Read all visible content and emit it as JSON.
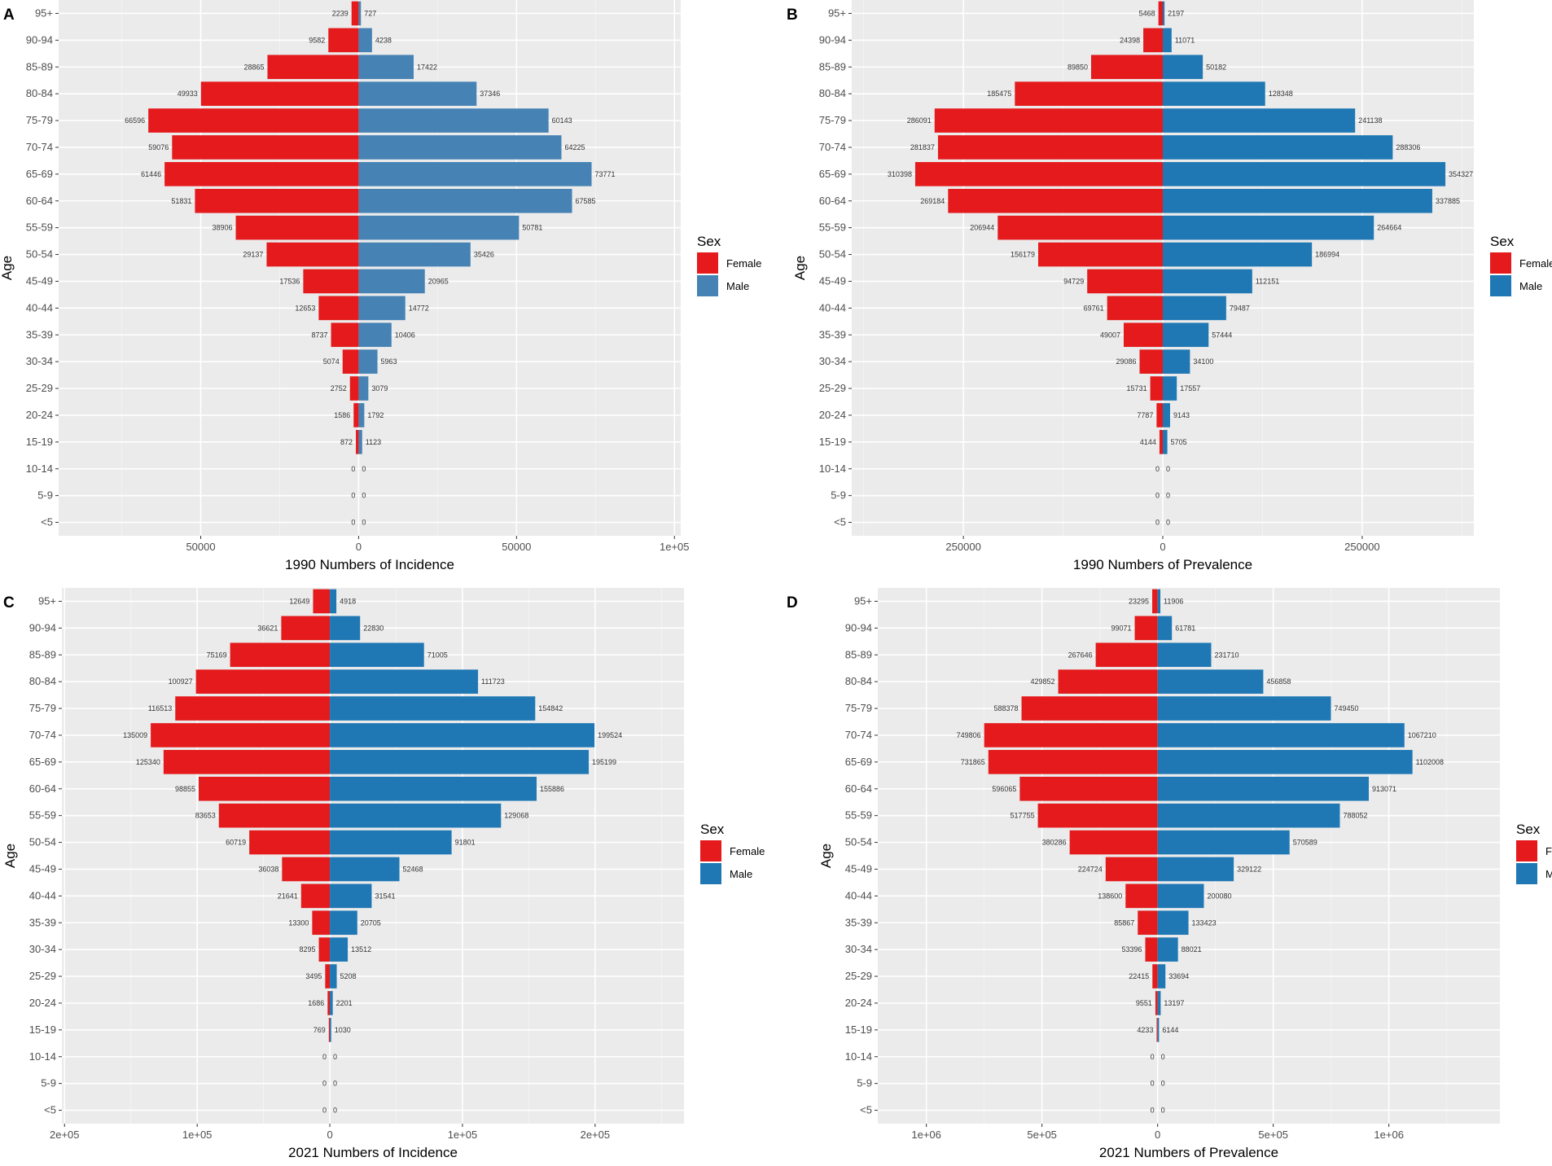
{
  "chart_data": [
    {
      "type": "bar",
      "panel_label": "A",
      "xlabel": "1990 Numbers of Incidence",
      "ylabel": "Age",
      "xlim": [
        -95000,
        102000
      ],
      "xticks": [
        {
          "value": -50000,
          "label": "50000"
        },
        {
          "value": 0,
          "label": "0"
        },
        {
          "value": 50000,
          "label": "50000"
        },
        {
          "value": 100000,
          "label": "1e+05"
        }
      ],
      "categories": [
        "<5",
        "5-9",
        "10-14",
        "15-19",
        "20-24",
        "25-29",
        "30-34",
        "35-39",
        "40-44",
        "45-49",
        "50-54",
        "55-59",
        "60-64",
        "65-69",
        "70-74",
        "75-79",
        "80-84",
        "85-89",
        "90-94",
        "95+"
      ],
      "series": [
        {
          "name": "Female",
          "color": "#e41a1c",
          "values": [
            0,
            0,
            0,
            872,
            1586,
            2752,
            5074,
            8737,
            12653,
            17536,
            29137,
            38906,
            51831,
            61446,
            59076,
            66596,
            49933,
            28865,
            9582,
            2239
          ]
        },
        {
          "name": "Male",
          "color": "#4682b4",
          "values": [
            0,
            0,
            0,
            1123,
            1792,
            3079,
            5963,
            10406,
            14772,
            20965,
            35426,
            50781,
            67585,
            73771,
            64225,
            60143,
            37346,
            17422,
            4238,
            727
          ]
        }
      ],
      "legend": {
        "title": "Sex",
        "position": "right",
        "labels": [
          "Female",
          "Male"
        ]
      }
    },
    {
      "type": "bar",
      "panel_label": "B",
      "xlabel": "1990 Numbers of Prevalence",
      "ylabel": "Age",
      "xlim": [
        -390000,
        390000
      ],
      "xticks": [
        {
          "value": -250000,
          "label": "250000"
        },
        {
          "value": 0,
          "label": "0"
        },
        {
          "value": 250000,
          "label": "250000"
        }
      ],
      "categories": [
        "<5",
        "5-9",
        "10-14",
        "15-19",
        "20-24",
        "25-29",
        "30-34",
        "35-39",
        "40-44",
        "45-49",
        "50-54",
        "55-59",
        "60-64",
        "65-69",
        "70-74",
        "75-79",
        "80-84",
        "85-89",
        "90-94",
        "95+"
      ],
      "series": [
        {
          "name": "Female",
          "color": "#e41a1c",
          "values": [
            0,
            0,
            0,
            4144,
            7787,
            15731,
            29086,
            49007,
            69761,
            94729,
            156179,
            206944,
            269184,
            310398,
            281837,
            286091,
            185475,
            89850,
            24398,
            5468
          ]
        },
        {
          "name": "Male",
          "color": "#1f78b4",
          "values": [
            0,
            0,
            0,
            5705,
            9143,
            17557,
            34100,
            57444,
            79487,
            112151,
            186994,
            264664,
            337885,
            354327,
            288306,
            241138,
            128348,
            50182,
            11071,
            2197
          ]
        }
      ],
      "legend": {
        "title": "Sex",
        "position": "right",
        "labels": [
          "Female",
          "Male"
        ]
      }
    },
    {
      "type": "bar",
      "panel_label": "C",
      "xlabel": "2021 Numbers of Incidence",
      "ylabel": "Age",
      "xlim": [
        -202000,
        267000
      ],
      "xticks": [
        {
          "value": -200000,
          "label": "2e+05"
        },
        {
          "value": -100000,
          "label": "1e+05"
        },
        {
          "value": 0,
          "label": "0"
        },
        {
          "value": 100000,
          "label": "1e+05"
        },
        {
          "value": 200000,
          "label": "2e+05"
        }
      ],
      "categories": [
        "<5",
        "5-9",
        "10-14",
        "15-19",
        "20-24",
        "25-29",
        "30-34",
        "35-39",
        "40-44",
        "45-49",
        "50-54",
        "55-59",
        "60-64",
        "65-69",
        "70-74",
        "75-79",
        "80-84",
        "85-89",
        "90-94",
        "95+"
      ],
      "series": [
        {
          "name": "Female",
          "color": "#e41a1c",
          "values": [
            0,
            0,
            0,
            769,
            1686,
            3495,
            8295,
            13300,
            21641,
            36038,
            60719,
            83653,
            98855,
            125340,
            135009,
            116513,
            100927,
            75169,
            36621,
            12649
          ]
        },
        {
          "name": "Male",
          "color": "#1f78b4",
          "values": [
            0,
            0,
            0,
            1030,
            2201,
            5208,
            13512,
            20705,
            31541,
            52468,
            91801,
            129068,
            155886,
            195199,
            199524,
            154842,
            111723,
            71005,
            22830,
            4918
          ]
        }
      ],
      "legend": {
        "title": "Sex",
        "position": "right",
        "labels": [
          "Female",
          "Male"
        ]
      }
    },
    {
      "type": "bar",
      "panel_label": "D",
      "xlabel": "2021 Numbers of Prevalence",
      "ylabel": "Age",
      "xlim": [
        -1210000,
        1480000
      ],
      "xticks": [
        {
          "value": -1000000,
          "label": "1e+06"
        },
        {
          "value": -500000,
          "label": "5e+05"
        },
        {
          "value": 0,
          "label": "0"
        },
        {
          "value": 500000,
          "label": "5e+05"
        },
        {
          "value": 1000000,
          "label": "1e+06"
        }
      ],
      "categories": [
        "<5",
        "5-9",
        "10-14",
        "15-19",
        "20-24",
        "25-29",
        "30-34",
        "35-39",
        "40-44",
        "45-49",
        "50-54",
        "55-59",
        "60-64",
        "65-69",
        "70-74",
        "75-79",
        "80-84",
        "85-89",
        "90-94",
        "95+"
      ],
      "series": [
        {
          "name": "Female",
          "color": "#e41a1c",
          "values": [
            0,
            0,
            0,
            4233,
            9551,
            22415,
            53396,
            85867,
            138600,
            224724,
            380286,
            517755,
            596065,
            731865,
            749806,
            588378,
            429852,
            267646,
            99071,
            23295
          ]
        },
        {
          "name": "Male",
          "color": "#1f78b4",
          "values": [
            0,
            0,
            0,
            6144,
            13197,
            33694,
            88021,
            133423,
            200080,
            329122,
            570589,
            788052,
            913071,
            1102008,
            1067210,
            749450,
            456858,
            231710,
            61781,
            11906
          ]
        }
      ],
      "legend": {
        "title": "Sex",
        "position": "right",
        "labels": [
          "Female",
          "Male"
        ]
      }
    }
  ]
}
